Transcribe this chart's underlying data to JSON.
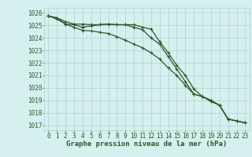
{
  "title": "Graphe pression niveau de la mer (hPa)",
  "x": [
    0,
    1,
    2,
    3,
    4,
    5,
    6,
    7,
    8,
    9,
    10,
    11,
    12,
    13,
    14,
    15,
    16,
    17,
    18,
    19,
    20,
    21,
    22,
    23
  ],
  "line1": [
    1025.75,
    1025.6,
    1025.1,
    1025.05,
    1024.85,
    1024.95,
    1025.05,
    1025.1,
    1025.05,
    1025.05,
    1024.85,
    1024.65,
    1024.0,
    1023.5,
    1022.5,
    1021.5,
    1020.5,
    1019.5,
    1019.3,
    1019.0,
    1018.6,
    1017.5,
    1017.35,
    1017.2
  ],
  "line2": [
    1025.75,
    1025.5,
    1025.1,
    1024.85,
    1024.6,
    1024.55,
    1024.45,
    1024.35,
    1024.1,
    1023.8,
    1023.5,
    1023.2,
    1022.8,
    1022.3,
    1021.6,
    1021.0,
    1020.2,
    1019.5,
    1019.3,
    1018.9,
    1018.6,
    1017.5,
    1017.35,
    1017.2
  ],
  "line3": [
    1025.75,
    1025.6,
    1025.3,
    1025.1,
    1025.1,
    1025.05,
    1025.05,
    1025.1,
    1025.05,
    1025.05,
    1025.05,
    1024.85,
    1024.7,
    1023.7,
    1022.8,
    1021.8,
    1021.0,
    1019.9,
    1019.3,
    1019.0,
    1018.6,
    1017.5,
    1017.35,
    1017.2
  ],
  "ylim": [
    1016.6,
    1026.4
  ],
  "yticks": [
    1017,
    1018,
    1019,
    1020,
    1021,
    1022,
    1023,
    1024,
    1025,
    1026
  ],
  "bg_color": "#d6efef",
  "grid_color": "#b0d4cc",
  "line_color": "#2d5a27",
  "marker": "+",
  "marker_size": 3,
  "line_width": 0.9,
  "title_fontsize": 6.5,
  "tick_fontsize": 5.5
}
